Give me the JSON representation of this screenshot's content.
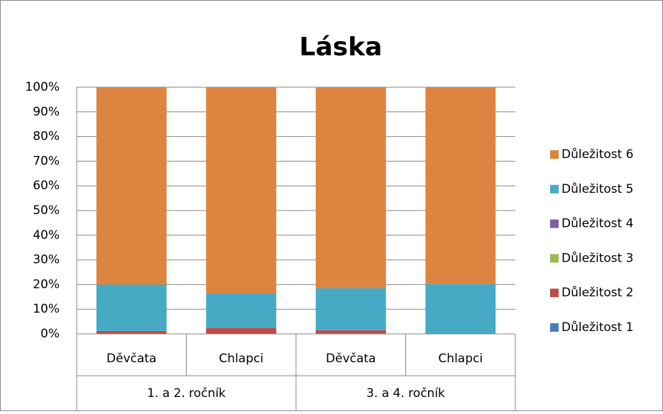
{
  "chart_data": {
    "type": "stacked_bar_100",
    "title": "Láska",
    "groups": [
      {
        "name": "1. a 2. ročník",
        "categories": [
          "Děvčata",
          "Chlapci"
        ]
      },
      {
        "name": "3. a 4. ročník",
        "categories": [
          "Děvčata",
          "Chlapci"
        ]
      }
    ],
    "series": [
      {
        "name": "Důležitost 1",
        "color": "#4a7ebb",
        "values": [
          0,
          0,
          0,
          0
        ]
      },
      {
        "name": "Důležitost 2",
        "color": "#be4b48",
        "values": [
          1.2,
          2.4,
          1.5,
          0
        ]
      },
      {
        "name": "Důležitost 3",
        "color": "#98b954",
        "values": [
          0,
          0,
          0,
          0
        ]
      },
      {
        "name": "Důležitost 4",
        "color": "#7d60a0",
        "values": [
          0,
          0,
          0,
          0
        ]
      },
      {
        "name": "Důležitost 5",
        "color": "#46aac5",
        "values": [
          18.8,
          14,
          17,
          20.2
        ]
      },
      {
        "name": "Důležitost 6",
        "color": "#dd8441",
        "values": [
          80,
          83.6,
          81.5,
          79.8
        ]
      }
    ],
    "ylim": [
      0,
      100
    ],
    "yticks": [
      {
        "value": 0,
        "label": "0%"
      },
      {
        "value": 10,
        "label": "10%"
      },
      {
        "value": 20,
        "label": "20%"
      },
      {
        "value": 30,
        "label": "30%"
      },
      {
        "value": 40,
        "label": "40%"
      },
      {
        "value": 50,
        "label": "50%"
      },
      {
        "value": 60,
        "label": "60%"
      },
      {
        "value": 70,
        "label": "70%"
      },
      {
        "value": 80,
        "label": "80%"
      },
      {
        "value": 90,
        "label": "90%"
      },
      {
        "value": 100,
        "label": "100%"
      }
    ],
    "grid": true,
    "legend": "right"
  }
}
